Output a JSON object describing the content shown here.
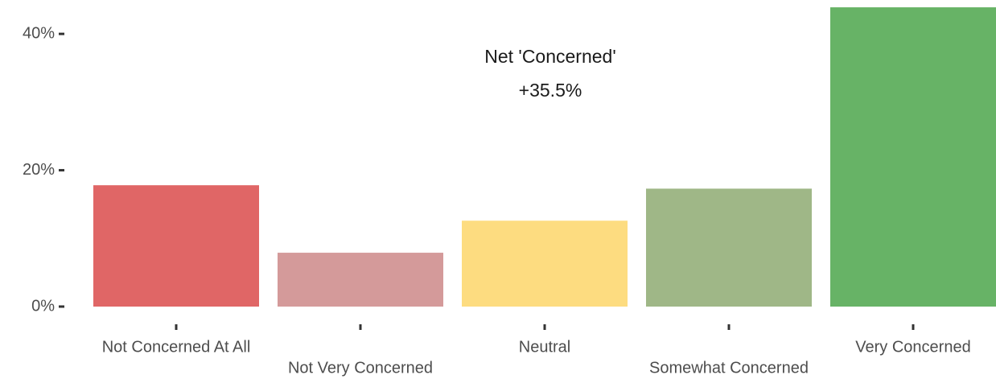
{
  "chart_data": {
    "type": "bar",
    "categories": [
      "Not Concerned At All",
      "Not Very Concerned",
      "Neutral",
      "Somewhat Concerned",
      "Very Concerned"
    ],
    "values": [
      17.8,
      7.9,
      12.6,
      17.3,
      43.9
    ],
    "colors": [
      "#e06666",
      "#d49a9a",
      "#fddc80",
      "#9fb787",
      "#67b366"
    ],
    "ylim": [
      0,
      44.5
    ],
    "yticks": [
      {
        "value": 0,
        "label": "0%"
      },
      {
        "value": 20,
        "label": "20%"
      },
      {
        "value": 40,
        "label": "40%"
      }
    ],
    "annotation": [
      "Net 'Concerned'",
      "+35.5%"
    ],
    "grid": false
  }
}
